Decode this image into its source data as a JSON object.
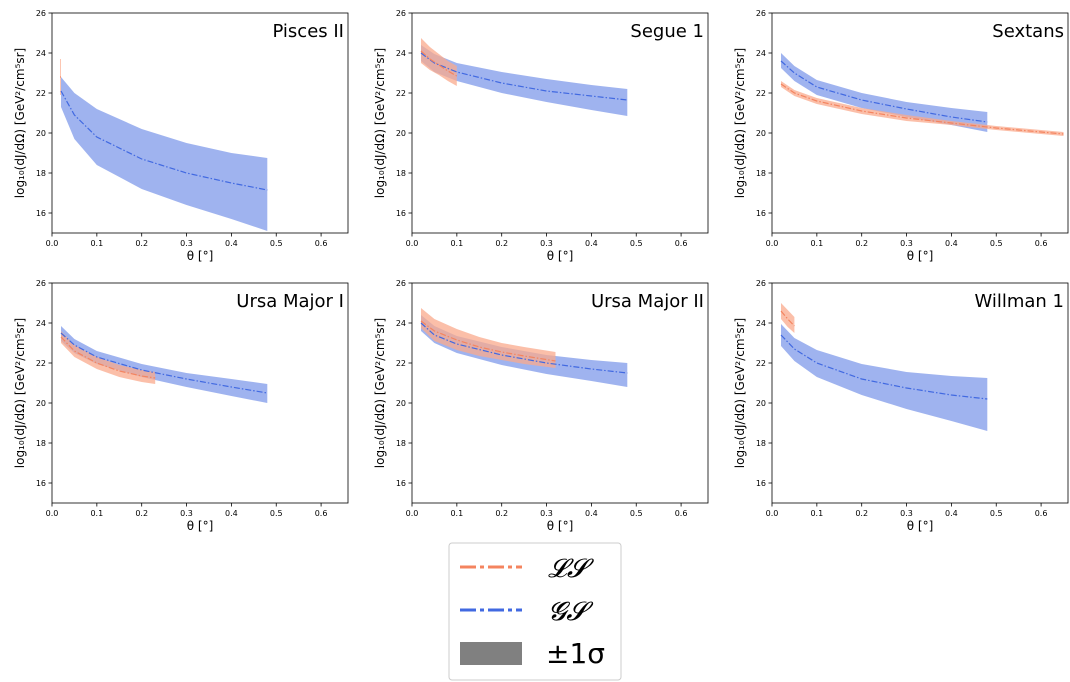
{
  "axes": {
    "xlabel": "θ [°]",
    "ylabel": "log₁₀(dJ/dΩ) [GeV²/cm⁵sr]",
    "xlim": [
      0.0,
      0.66
    ],
    "ylim": [
      15.0,
      26.0
    ],
    "xticks": [
      "0.0",
      "0.1",
      "0.2",
      "0.3",
      "0.4",
      "0.5",
      "0.6"
    ],
    "yticks": [
      "16",
      "18",
      "20",
      "22",
      "24",
      "26"
    ]
  },
  "colors": {
    "LS": "#f4845f",
    "LS_band": "#f9a98c",
    "GS": "#4169e1",
    "GS_band": "#8ea6ec",
    "sigma": "#808080"
  },
  "legend": {
    "placement": "bottom-center",
    "items": [
      {
        "label": "𝓛𝓢",
        "kind": "LS"
      },
      {
        "label": "𝓖𝓢",
        "kind": "GS"
      },
      {
        "label": "±1σ",
        "kind": "sigma"
      }
    ]
  },
  "chart_data": [
    {
      "type": "line",
      "title": "Pisces II",
      "series": [
        {
          "name": "GS",
          "x": [
            0.02,
            0.05,
            0.1,
            0.2,
            0.3,
            0.4,
            0.48
          ],
          "y": [
            22.1,
            20.9,
            19.8,
            18.7,
            18.0,
            17.5,
            17.15
          ],
          "upper": [
            22.8,
            22.0,
            21.2,
            20.2,
            19.5,
            19.0,
            18.75
          ],
          "lower": [
            21.3,
            19.7,
            18.4,
            17.2,
            16.4,
            15.7,
            15.1
          ]
        },
        {
          "name": "LS",
          "x": [
            0.018,
            0.02
          ],
          "y": [
            22.8,
            22.8
          ],
          "upper": [
            23.7,
            23.7
          ],
          "lower": [
            21.9,
            21.9
          ]
        }
      ]
    },
    {
      "type": "line",
      "title": "Segue 1",
      "series": [
        {
          "name": "GS",
          "x": [
            0.02,
            0.05,
            0.1,
            0.2,
            0.3,
            0.4,
            0.48
          ],
          "y": [
            24.0,
            23.5,
            23.05,
            22.5,
            22.1,
            21.85,
            21.65
          ],
          "upper": [
            24.4,
            23.95,
            23.5,
            23.05,
            22.7,
            22.4,
            22.2
          ],
          "lower": [
            23.6,
            23.05,
            22.6,
            22.0,
            21.55,
            21.15,
            20.85
          ]
        },
        {
          "name": "LS",
          "x": [
            0.02,
            0.04,
            0.06,
            0.08,
            0.1
          ],
          "y": [
            24.1,
            23.7,
            23.4,
            23.1,
            22.85
          ],
          "upper": [
            24.75,
            24.3,
            23.95,
            23.6,
            23.35
          ],
          "lower": [
            23.5,
            23.15,
            22.9,
            22.6,
            22.35
          ]
        }
      ]
    },
    {
      "type": "line",
      "title": "Sextans",
      "series": [
        {
          "name": "GS",
          "x": [
            0.02,
            0.05,
            0.1,
            0.2,
            0.3,
            0.4,
            0.48
          ],
          "y": [
            23.6,
            23.0,
            22.3,
            21.65,
            21.2,
            20.8,
            20.55
          ],
          "upper": [
            24.0,
            23.35,
            22.65,
            22.0,
            21.55,
            21.25,
            21.05
          ],
          "lower": [
            23.25,
            22.6,
            21.9,
            21.25,
            20.8,
            20.4,
            20.05
          ]
        },
        {
          "name": "LS",
          "x": [
            0.02,
            0.05,
            0.1,
            0.2,
            0.3,
            0.4,
            0.5,
            0.6,
            0.65
          ],
          "y": [
            22.45,
            22.0,
            21.6,
            21.1,
            20.75,
            20.5,
            20.25,
            20.05,
            19.95
          ],
          "upper": [
            22.6,
            22.15,
            21.75,
            21.25,
            20.9,
            20.6,
            20.35,
            20.15,
            20.05
          ],
          "lower": [
            22.3,
            21.85,
            21.45,
            20.95,
            20.6,
            20.4,
            20.15,
            19.95,
            19.85
          ]
        }
      ]
    },
    {
      "type": "line",
      "title": "Ursa Major I",
      "series": [
        {
          "name": "GS",
          "x": [
            0.02,
            0.05,
            0.1,
            0.2,
            0.3,
            0.4,
            0.48
          ],
          "y": [
            23.5,
            22.9,
            22.3,
            21.65,
            21.2,
            20.8,
            20.5
          ],
          "upper": [
            23.85,
            23.2,
            22.6,
            21.95,
            21.5,
            21.2,
            20.95
          ],
          "lower": [
            23.1,
            22.5,
            21.95,
            21.3,
            20.8,
            20.35,
            20.0
          ]
        },
        {
          "name": "LS",
          "x": [
            0.02,
            0.05,
            0.1,
            0.15,
            0.2,
            0.23
          ],
          "y": [
            23.3,
            22.6,
            22.0,
            21.6,
            21.35,
            21.25
          ],
          "upper": [
            23.6,
            22.9,
            22.3,
            21.9,
            21.65,
            21.55
          ],
          "lower": [
            23.0,
            22.3,
            21.7,
            21.3,
            21.05,
            20.95
          ]
        }
      ]
    },
    {
      "type": "line",
      "title": "Ursa Major II",
      "series": [
        {
          "name": "GS",
          "x": [
            0.02,
            0.05,
            0.1,
            0.2,
            0.3,
            0.4,
            0.48
          ],
          "y": [
            24.0,
            23.4,
            22.95,
            22.4,
            22.0,
            21.7,
            21.5
          ],
          "upper": [
            24.4,
            23.85,
            23.35,
            22.8,
            22.4,
            22.15,
            22.0
          ],
          "lower": [
            23.6,
            23.0,
            22.5,
            21.9,
            21.45,
            21.1,
            20.8
          ]
        },
        {
          "name": "LS",
          "x": [
            0.02,
            0.05,
            0.1,
            0.15,
            0.2,
            0.25,
            0.32
          ],
          "y": [
            24.1,
            23.6,
            23.15,
            22.8,
            22.55,
            22.35,
            22.1
          ],
          "upper": [
            24.75,
            24.2,
            23.7,
            23.3,
            23.0,
            22.8,
            22.55
          ],
          "lower": [
            23.75,
            23.1,
            22.65,
            22.35,
            22.15,
            21.95,
            21.75
          ]
        }
      ]
    },
    {
      "type": "line",
      "title": "Willman 1",
      "series": [
        {
          "name": "GS",
          "x": [
            0.02,
            0.05,
            0.1,
            0.2,
            0.3,
            0.4,
            0.48
          ],
          "y": [
            23.4,
            22.7,
            22.0,
            21.2,
            20.75,
            20.4,
            20.2
          ],
          "upper": [
            23.95,
            23.25,
            22.65,
            21.95,
            21.55,
            21.35,
            21.25
          ],
          "lower": [
            22.85,
            22.1,
            21.3,
            20.4,
            19.7,
            19.1,
            18.6
          ]
        },
        {
          "name": "LS",
          "x": [
            0.02,
            0.035,
            0.05
          ],
          "y": [
            24.6,
            24.2,
            23.85
          ],
          "upper": [
            25.0,
            24.65,
            24.3
          ],
          "lower": [
            24.2,
            23.8,
            23.5
          ]
        }
      ]
    }
  ]
}
